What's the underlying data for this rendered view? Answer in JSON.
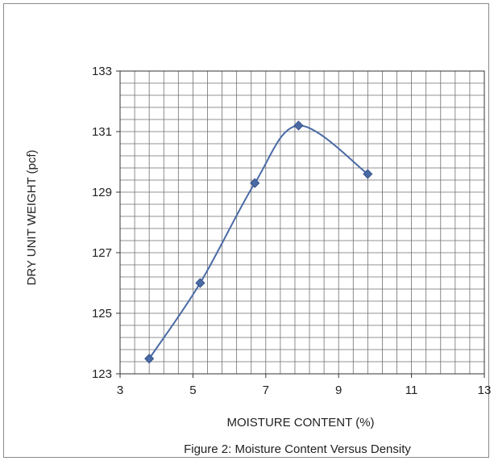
{
  "chart_data": {
    "type": "scatter",
    "title": "",
    "caption": "Figure 2: Moisture Content Versus Density",
    "xlabel": "MOISTURE CONTENT (%)",
    "ylabel": "DRY UNIT WEIGHT (pcf)",
    "xlim": [
      3,
      13
    ],
    "ylim": [
      123,
      133
    ],
    "x_ticks": [
      3,
      5,
      7,
      9,
      11,
      13
    ],
    "y_ticks": [
      123,
      125,
      127,
      129,
      131,
      133
    ],
    "x_minor_step": 0.4,
    "y_minor_step": 0.4,
    "grid": true,
    "smooth_line": true,
    "series": [
      {
        "x": [
          3.8,
          5.2,
          6.7,
          7.9,
          9.8
        ],
        "y": [
          123.5,
          126.0,
          129.3,
          131.2,
          129.6
        ],
        "color": "#4a6aa5",
        "marker": "diamond"
      }
    ]
  }
}
